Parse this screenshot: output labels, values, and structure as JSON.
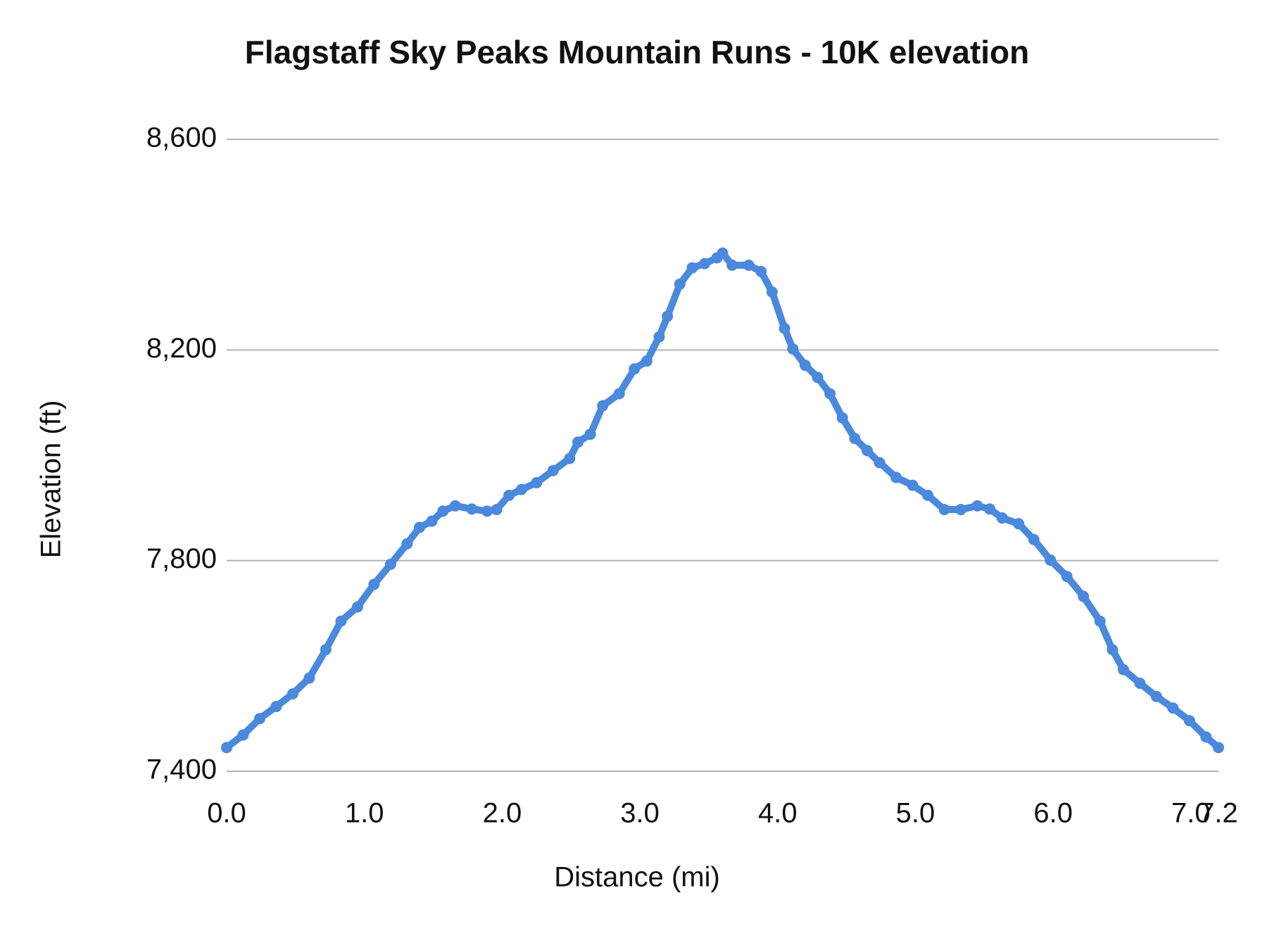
{
  "chart_data": {
    "type": "line",
    "title": "Flagstaff Sky Peaks Mountain Runs - 10K elevation",
    "xlabel": "Distance (mi)",
    "ylabel": "Elevation (ft)",
    "x": [
      0,
      0.12,
      0.24,
      0.36,
      0.48,
      0.6,
      0.72,
      0.83,
      0.95,
      1.07,
      1.19,
      1.31,
      1.4,
      1.49,
      1.57,
      1.66,
      1.78,
      1.89,
      1.96,
      2.05,
      2.14,
      2.25,
      2.37,
      2.49,
      2.55,
      2.64,
      2.73,
      2.85,
      2.96,
      3.05,
      3.14,
      3.2,
      3.29,
      3.38,
      3.47,
      3.56,
      3.6,
      3.67,
      3.79,
      3.88,
      3.96,
      4.05,
      4.11,
      4.2,
      4.29,
      4.38,
      4.47,
      4.56,
      4.65,
      4.74,
      4.86,
      4.98,
      5.09,
      5.21,
      5.33,
      5.45,
      5.54,
      5.63,
      5.75,
      5.86,
      5.98,
      6.1,
      6.22,
      6.34,
      6.43,
      6.51,
      6.63,
      6.75,
      6.87,
      6.99,
      7.11,
      7.2
    ],
    "values": [
      7445,
      7469,
      7500,
      7523,
      7547,
      7577,
      7631,
      7685,
      7712,
      7755,
      7793,
      7832,
      7863,
      7875,
      7894,
      7904,
      7898,
      7894,
      7897,
      7924,
      7935,
      7948,
      7971,
      7994,
      8025,
      8040,
      8094,
      8117,
      8164,
      8179,
      8225,
      8264,
      8325,
      8356,
      8364,
      8375,
      8384,
      8361,
      8361,
      8349,
      8310,
      8241,
      8202,
      8171,
      8148,
      8117,
      8071,
      8032,
      8009,
      7986,
      7958,
      7943,
      7924,
      7897,
      7897,
      7904,
      7898,
      7881,
      7870,
      7840,
      7801,
      7770,
      7732,
      7685,
      7631,
      7593,
      7567,
      7542,
      7520,
      7496,
      7465,
      7445
    ],
    "color": "#4a89dc",
    "markers": true,
    "xlim": [
      0,
      7.2
    ],
    "xticks": [
      {
        "value": 0,
        "label": "0.0"
      },
      {
        "value": 1,
        "label": "1.0"
      },
      {
        "value": 2,
        "label": "2.0"
      },
      {
        "value": 3,
        "label": "3.0"
      },
      {
        "value": 4,
        "label": "4.0"
      },
      {
        "value": 5,
        "label": "5.0"
      },
      {
        "value": 6,
        "label": "6.0"
      },
      {
        "value": 7,
        "label": "7.0"
      },
      7.2
    ],
    "ylim": [
      7400,
      8600
    ],
    "yticks": [
      {
        "value": 7400,
        "label": "7,400"
      },
      {
        "value": 7800,
        "label": "7,800"
      },
      {
        "value": 8200,
        "label": "8,200"
      },
      {
        "value": 8600,
        "label": "8,600"
      }
    ],
    "grid": true
  }
}
